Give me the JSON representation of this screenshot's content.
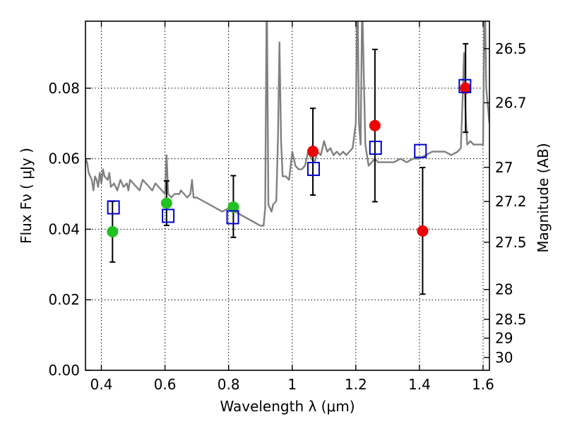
{
  "chart_data": {
    "type": "scatter",
    "title": "",
    "xlabel": "Wavelength  λ (μm)",
    "ylabel": "Flux  Fν  ( μJy )",
    "ylabel_right": "Magnitude (AB)",
    "xlim": [
      0.35,
      1.62
    ],
    "ylim": [
      0.0,
      0.099
    ],
    "grid": true,
    "x_ticks": [
      {
        "value": 0.4,
        "label": "0.4"
      },
      {
        "value": 0.6,
        "label": "0.6"
      },
      {
        "value": 0.8,
        "label": "0.8"
      },
      {
        "value": 1.0,
        "label": "1"
      },
      {
        "value": 1.2,
        "label": "1.2"
      },
      {
        "value": 1.4,
        "label": "1.4"
      },
      {
        "value": 1.6,
        "label": "1.6"
      }
    ],
    "y_ticks": [
      {
        "value": 0.0,
        "label": "0.00"
      },
      {
        "value": 0.02,
        "label": "0.02"
      },
      {
        "value": 0.04,
        "label": "0.04"
      },
      {
        "value": 0.06,
        "label": "0.06"
      },
      {
        "value": 0.08,
        "label": "0.08"
      }
    ],
    "right_ticks": [
      {
        "mag": 26.5,
        "label": "26.5"
      },
      {
        "mag": 26.7,
        "label": "26.7"
      },
      {
        "mag": 27.0,
        "label": "27"
      },
      {
        "mag": 27.2,
        "label": "27.2"
      },
      {
        "mag": 27.5,
        "label": "27.5"
      },
      {
        "mag": 28.0,
        "label": "28"
      },
      {
        "mag": 28.5,
        "label": "28.5"
      },
      {
        "mag": 29.0,
        "label": "29"
      },
      {
        "mag": 30.0,
        "label": "30"
      }
    ],
    "colors": {
      "spectrum": "#808080",
      "green_points": "#22c022",
      "red_points": "#ee0000",
      "model_squares": "#0000cc",
      "errorbars": "#000000"
    },
    "series": [
      {
        "type": "line",
        "style": "spectrum",
        "x": [
          0.35,
          0.355,
          0.36,
          0.37,
          0.375,
          0.38,
          0.385,
          0.39,
          0.395,
          0.4,
          0.405,
          0.41,
          0.42,
          0.425,
          0.43,
          0.44,
          0.45,
          0.46,
          0.47,
          0.48,
          0.485,
          0.49,
          0.5,
          0.51,
          0.52,
          0.53,
          0.54,
          0.55,
          0.56,
          0.57,
          0.58,
          0.59,
          0.6,
          0.605,
          0.61,
          0.62,
          0.63,
          0.64,
          0.645,
          0.65,
          0.66,
          0.67,
          0.68,
          0.685,
          0.69,
          0.7,
          0.72,
          0.74,
          0.76,
          0.78,
          0.8,
          0.82,
          0.84,
          0.86,
          0.88,
          0.9,
          0.91,
          0.915,
          0.92,
          0.925,
          0.93,
          0.935,
          0.94,
          0.95,
          0.955,
          0.96,
          0.965,
          0.97,
          0.98,
          0.99,
          1.0,
          1.01,
          1.02,
          1.03,
          1.04,
          1.05,
          1.06,
          1.07,
          1.08,
          1.09,
          1.1,
          1.11,
          1.12,
          1.13,
          1.14,
          1.15,
          1.16,
          1.17,
          1.18,
          1.19,
          1.2,
          1.205,
          1.21,
          1.215,
          1.22,
          1.23,
          1.24,
          1.25,
          1.26,
          1.27,
          1.28,
          1.29,
          1.3,
          1.32,
          1.34,
          1.36,
          1.38,
          1.4,
          1.42,
          1.44,
          1.46,
          1.48,
          1.5,
          1.52,
          1.53,
          1.535,
          1.54,
          1.545,
          1.55,
          1.56,
          1.57,
          1.58,
          1.59,
          1.6,
          1.605,
          1.61,
          1.615,
          1.62
        ],
        "y": [
          0.06,
          0.059,
          0.056,
          0.054,
          0.051,
          0.055,
          0.054,
          0.052,
          0.056,
          0.053,
          0.057,
          0.055,
          0.054,
          0.056,
          0.052,
          0.053,
          0.051,
          0.054,
          0.052,
          0.053,
          0.051,
          0.054,
          0.053,
          0.052,
          0.051,
          0.054,
          0.053,
          0.052,
          0.051,
          0.053,
          0.052,
          0.051,
          0.05,
          0.061,
          0.05,
          0.049,
          0.05,
          0.05,
          0.05,
          0.051,
          0.05,
          0.049,
          0.05,
          0.054,
          0.049,
          0.049,
          0.048,
          0.047,
          0.046,
          0.045,
          0.046,
          0.045,
          0.044,
          0.043,
          0.042,
          0.041,
          0.041,
          0.046,
          0.11,
          0.047,
          0.046,
          0.045,
          0.047,
          0.048,
          0.065,
          0.093,
          0.065,
          0.055,
          0.055,
          0.054,
          0.062,
          0.058,
          0.057,
          0.057,
          0.058,
          0.062,
          0.06,
          0.059,
          0.062,
          0.061,
          0.065,
          0.062,
          0.063,
          0.061,
          0.062,
          0.061,
          0.062,
          0.061,
          0.062,
          0.063,
          0.07,
          0.11,
          0.07,
          0.064,
          0.105,
          0.064,
          0.058,
          0.059,
          0.06,
          0.059,
          0.059,
          0.059,
          0.059,
          0.059,
          0.06,
          0.059,
          0.06,
          0.06,
          0.061,
          0.062,
          0.062,
          0.062,
          0.061,
          0.062,
          0.063,
          0.075,
          0.09,
          0.073,
          0.064,
          0.065,
          0.064,
          0.064,
          0.064,
          0.064,
          0.11,
          0.08,
          0.075,
          0.07
        ]
      },
      {
        "type": "errorbar",
        "style": "green_points",
        "x": [
          0.435,
          0.605,
          0.815
        ],
        "y": [
          0.0393,
          0.0474,
          0.0463
        ],
        "yerr_low": [
          0.0086,
          0.0063,
          0.0086
        ],
        "yerr_high": [
          0.0086,
          0.0063,
          0.0089
        ]
      },
      {
        "type": "errorbar",
        "style": "red_points",
        "x": [
          1.065,
          1.26,
          1.41,
          1.545
        ],
        "y": [
          0.0621,
          0.0694,
          0.0395,
          0.08
        ],
        "yerr_low": [
          0.0124,
          0.0216,
          0.0179,
          0.0125
        ],
        "yerr_high": [
          0.0122,
          0.0216,
          0.018,
          0.0126
        ]
      },
      {
        "type": "scatter",
        "style": "model_squares",
        "x": [
          0.438,
          0.61,
          0.813,
          1.067,
          1.262,
          1.403,
          1.543
        ],
        "y": [
          0.0462,
          0.0438,
          0.0434,
          0.0571,
          0.0631,
          0.0622,
          0.0806
        ]
      }
    ]
  }
}
